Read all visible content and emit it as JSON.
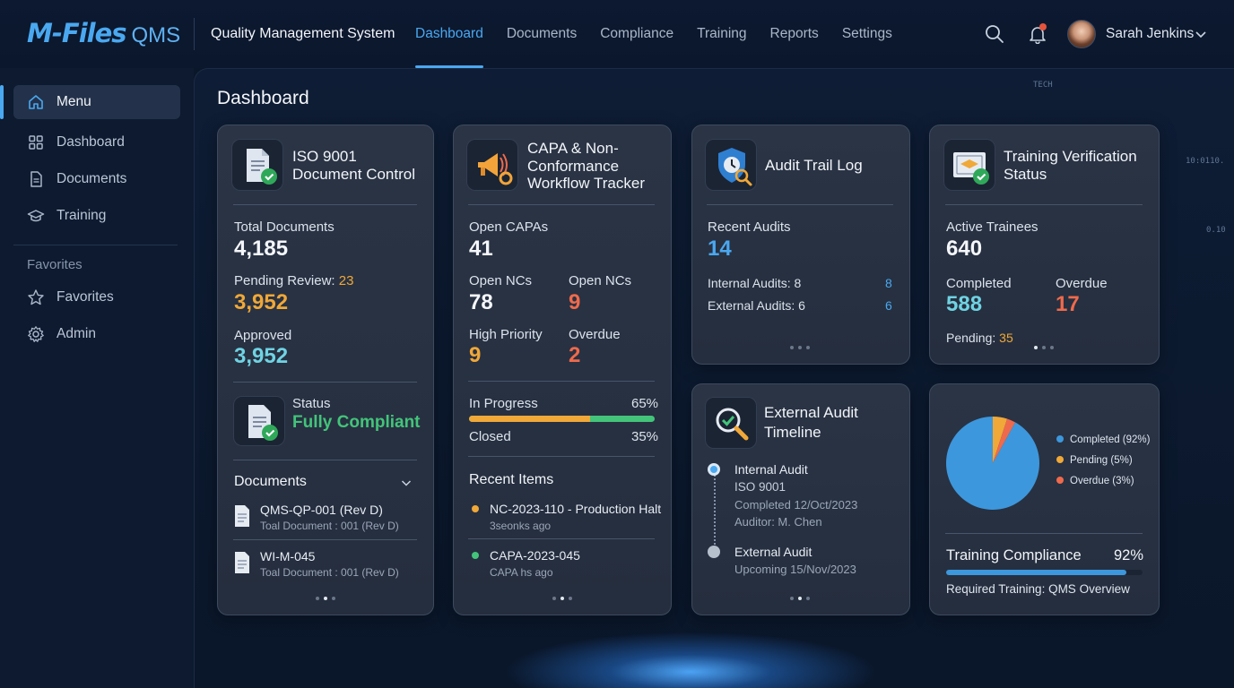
{
  "brand": {
    "logo_main": "M-Files",
    "logo_suffix": "QMS",
    "app_title": "Quality Management System"
  },
  "nav": [
    {
      "label": "Dashboard",
      "active": true
    },
    {
      "label": "Documents"
    },
    {
      "label": "Compliance"
    },
    {
      "label": "Training"
    },
    {
      "label": "Reports"
    },
    {
      "label": "Settings"
    }
  ],
  "user": {
    "name": "Sarah Jenkins"
  },
  "sidebar": {
    "items": [
      {
        "label": "Menu",
        "icon": "home-icon",
        "active": true
      },
      {
        "label": "Dashboard",
        "icon": "grid-icon"
      },
      {
        "label": "Documents",
        "icon": "document-icon"
      },
      {
        "label": "Training",
        "icon": "graduation-cap-icon"
      }
    ],
    "section": "Favorites",
    "fav_items": [
      {
        "label": "Favorites",
        "icon": "star-icon"
      },
      {
        "label": "Admin",
        "icon": "gear-icon"
      }
    ]
  },
  "page_title": "Dashboard",
  "iso": {
    "title_1": "ISO 9001",
    "title_2": "Document Control",
    "total_label": "Total Documents",
    "total_value": "4,185",
    "pending_label": "Pending Review:",
    "pending_badge": "23",
    "pending_value": "3,952",
    "approved_label": "Approved",
    "approved_value": "3,952",
    "status_label": "Status",
    "status_value": "Fully Compliant",
    "docs_header": "Documents",
    "docs": [
      {
        "name": "QMS-QP-001 (Rev D)",
        "sub": "Toal Document : 001 (Rev D)"
      },
      {
        "name": "WI-M-045",
        "sub": "Toal Document : 001 (Rev D)"
      }
    ]
  },
  "capa": {
    "title_1": "CAPA & Non-",
    "title_2": "Conformance",
    "title_3": "Workflow Tracker",
    "open_capas_label": "Open CAPAs",
    "open_capas_value": "41",
    "open_ncs_label": "Open NCs",
    "open_ncs_value": "78",
    "open_ncs2_label": "Open NCs",
    "open_ncs2_value": "9",
    "high_label": "High Priority",
    "high_value": "9",
    "overdue_label": "Overdue",
    "overdue_value": "2",
    "inprog_label": "In Progress",
    "inprog_pct": "65%",
    "inprog_fraction": 0.65,
    "closed_label": "Closed",
    "closed_pct": "35%",
    "recent_header": "Recent Items",
    "recent": [
      {
        "title": "NC-2023-110 - Production Halt",
        "sub": "3seonks ago",
        "color": "#f0a838"
      },
      {
        "title": "CAPA-2023-045",
        "sub": "CAPA hs ago",
        "color": "#43c47a"
      }
    ]
  },
  "audit": {
    "title": "Audit Trail Log",
    "recent_label": "Recent Audits",
    "recent_value": "14",
    "internal_label": "Internal Audits: 8",
    "internal_value": "8",
    "external_label": "External Audits: 6",
    "external_value": "6"
  },
  "training": {
    "title_1": "Training Verification",
    "title_2": "Status",
    "active_label": "Active Trainees",
    "active_value": "640",
    "completed_label": "Completed",
    "completed_value": "588",
    "overdue_label": "Overdue",
    "overdue_value": "17",
    "pending_label": "Pending:",
    "pending_value": "35"
  },
  "timeline": {
    "title_1": "External Audit",
    "title_2": "Timeline",
    "items": [
      {
        "title": "Internal Audit",
        "line2": "ISO 9001",
        "line3": "Completed 12/Oct/2023",
        "line4": "Auditor: M. Chen"
      },
      {
        "title": "External Audit",
        "line2": "Upcoming 15/Nov/2023"
      }
    ]
  },
  "compliance": {
    "legend": [
      {
        "label": "Completed (92%)",
        "color": "#3d97dc"
      },
      {
        "label": "Pending (5%)",
        "color": "#f0a838"
      },
      {
        "label": "Overdue (3%)",
        "color": "#ef6a4c"
      }
    ],
    "bar_label": "Training Compliance",
    "bar_pct": "92%",
    "bar_fraction": 0.92,
    "required": "Required Training: QMS Overview"
  },
  "chart_data": {
    "type": "pie",
    "categories": [
      "Completed",
      "Pending",
      "Overdue"
    ],
    "values": [
      92,
      5,
      3
    ],
    "colors": [
      "#3d97dc",
      "#f0a838",
      "#ef6a4c"
    ]
  },
  "decor": {
    "t1": "TECH",
    "t2": "10:0110.",
    "t3": "0.10"
  }
}
